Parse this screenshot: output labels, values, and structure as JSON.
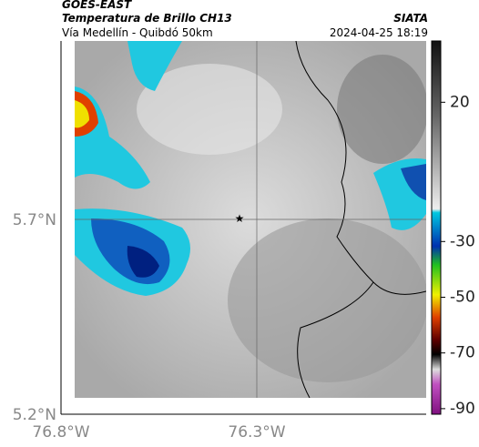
{
  "header": {
    "source": "GOES-EAST",
    "title": "Temperatura de Brillo CH13",
    "credit": "SIATA",
    "subtitle": "Vía Medellín - Quibdó 50km",
    "timestamp": "2024-04-25 18:19"
  },
  "map": {
    "lat_labels": [
      "5.7°N",
      "5.2°N"
    ],
    "lon_labels": [
      "76.8°W",
      "76.3°W"
    ]
  },
  "colorbar": {
    "range": [
      -92,
      42
    ],
    "ticks": [
      20,
      -30,
      -50,
      -70,
      -90
    ]
  }
}
